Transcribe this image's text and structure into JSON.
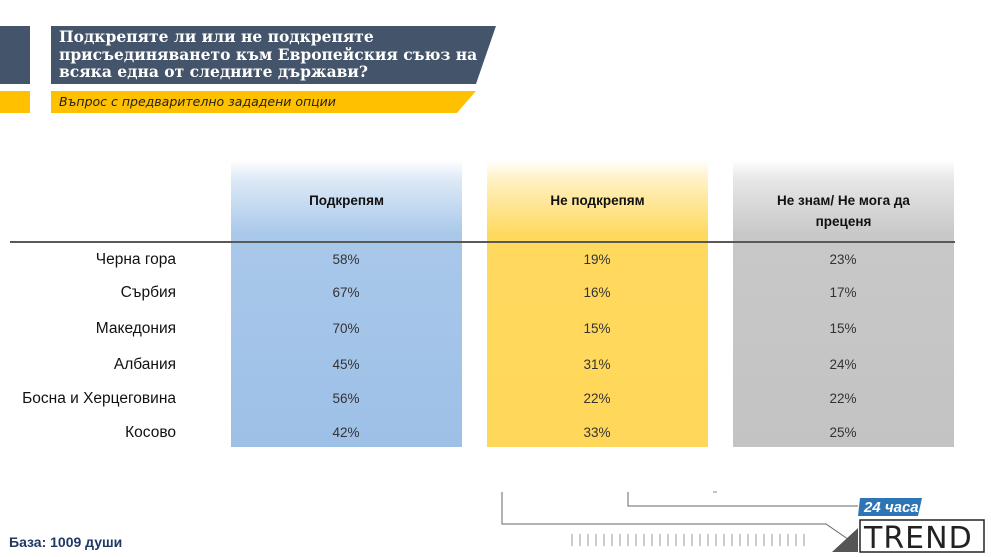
{
  "header": {
    "title": "Подкрепяте ли или не подкрепяте присъединяването към Европейския съюз на всяка една от следните държави?",
    "subtitle": "Въпрос с предварително зададени опции"
  },
  "chart_data": {
    "type": "table",
    "columns": [
      "Подкрепям",
      "Не подкрепям",
      "Не знам/ Не мога да преценя"
    ],
    "rows": [
      {
        "label": "Черна гора",
        "values": [
          "58%",
          "19%",
          "23%"
        ]
      },
      {
        "label": "Сърбия",
        "values": [
          "67%",
          "16%",
          "17%"
        ]
      },
      {
        "label": "Македония",
        "values": [
          "70%",
          "15%",
          "15%"
        ]
      },
      {
        "label": "Албания",
        "values": [
          "45%",
          "31%",
          "24%"
        ]
      },
      {
        "label": "Босна и Херцеговина",
        "values": [
          "56%",
          "22%",
          "22%"
        ]
      },
      {
        "label": "Косово",
        "values": [
          "42%",
          "33%",
          "25%"
        ]
      }
    ],
    "column_colors": [
      "#9dc0e7",
      "#ffd75a",
      "#c3c3c3"
    ]
  },
  "footer": {
    "base_note": "База: 1009 души",
    "logo_top": "24 часа",
    "logo_bottom": "TRЕND"
  }
}
